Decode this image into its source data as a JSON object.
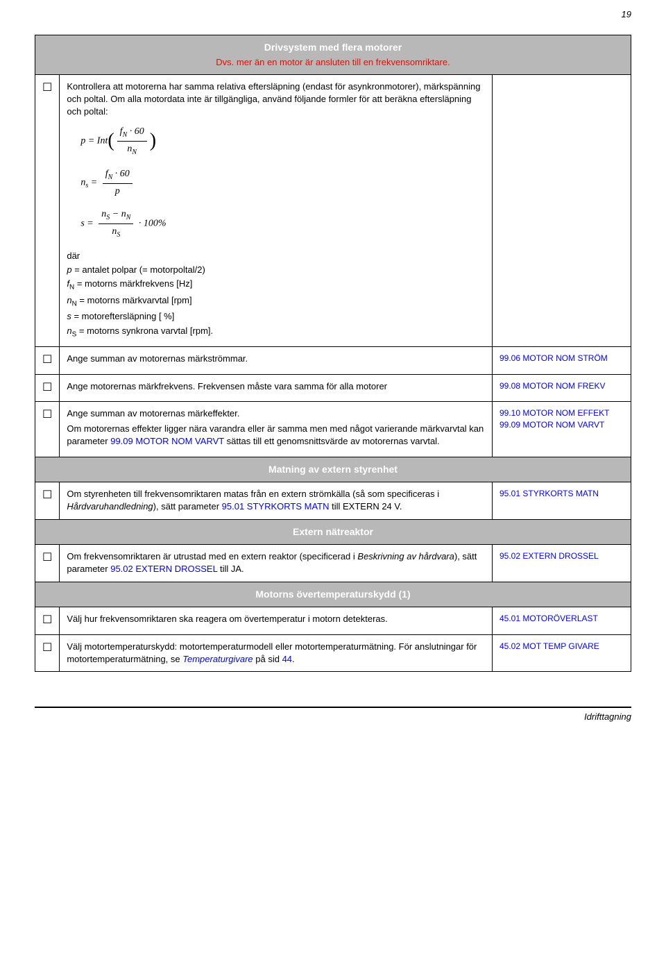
{
  "page_number": "19",
  "sections": {
    "drivsystem": {
      "title": "Drivsystem med flera motorer",
      "subtitle": "Dvs. mer än en motor är ansluten till en frekvensomriktare."
    },
    "matning": {
      "title": "Matning av extern styrenhet"
    },
    "extern_reaktor": {
      "title": "Extern nätreaktor"
    },
    "overtemp": {
      "title": "Motorns övertemperaturskydd (1)"
    }
  },
  "rows": {
    "r1": {
      "intro": "Kontrollera att motorerna har samma relativa eftersläpning (endast för asynkronmotorer), märkspänning och poltal. Om alla motordata inte är tillgängliga, använd följande formler för att beräkna eftersläpning och poltal:",
      "defs": {
        "dar": "där",
        "p": "p = antalet polpar (= motorpoltal/2)",
        "fn": "fN = motorns märkfrekvens [Hz]",
        "nn": "nN = motorns märkvarvtal [rpm]",
        "s": "s = motoreftersläpning [ %]",
        "ns": "nS = motorns synkrona varvtal [rpm]."
      }
    },
    "r2": {
      "text": "Ange summan av motorernas märkströmmar.",
      "ref": "99.06 MOTOR NOM STRÖM"
    },
    "r3": {
      "text": "Ange motorernas märkfrekvens. Frekvensen måste vara samma för alla motorer",
      "ref": "99.08 MOTOR NOM FREKV"
    },
    "r4": {
      "p1": "Ange summan av motorernas märkeffekter.",
      "p2a": "Om motorernas effekter ligger nära varandra eller är samma men med något varierande märkvarvtal kan parameter ",
      "p2b": "99.09 MOTOR NOM VARVT",
      "p2c": " sättas till ett genomsnittsvärde av motorernas varvtal.",
      "ref1": "99.10 MOTOR NOM EFFEKT",
      "ref2": "99.09 MOTOR NOM VARVT"
    },
    "r5": {
      "p1a": "Om styrenheten till frekvensomriktaren matas från en extern strömkälla (så som specificeras i ",
      "p1b": "Hårdvaruhandledning",
      "p1c": "), sätt parameter ",
      "p1d": "95.01 STYRKORTS MATN",
      "p1e": " till EXTERN 24 V.",
      "ref": "95.01 STYRKORTS MATN"
    },
    "r6": {
      "p1a": "Om frekvensomriktaren är utrustad med en extern reaktor (specificerad i ",
      "p1b": "Beskrivning av hårdvara",
      "p1c": "), sätt parameter ",
      "p1d": "95.02 EXTERN DROSSEL",
      "p1e": " till JA.",
      "ref": "95.02 EXTERN DROSSEL"
    },
    "r7": {
      "text": "Välj hur frekvensomriktaren ska reagera om övertemperatur i motorn detekteras.",
      "ref": "45.01 MOTORÖVERLAST"
    },
    "r8": {
      "p1a": "Välj motortemperaturskydd: motortemperaturmodell eller motortemperaturmätning. För anslutningar för motortemperaturmätning, se ",
      "p1b": "Temperaturgivare",
      "p1c": " på sid ",
      "p1d": "44",
      "p1e": ".",
      "ref": "45.02 MOT TEMP GIVARE"
    }
  },
  "footer": "Idrifttagning",
  "checkbox_glyph": "☐"
}
